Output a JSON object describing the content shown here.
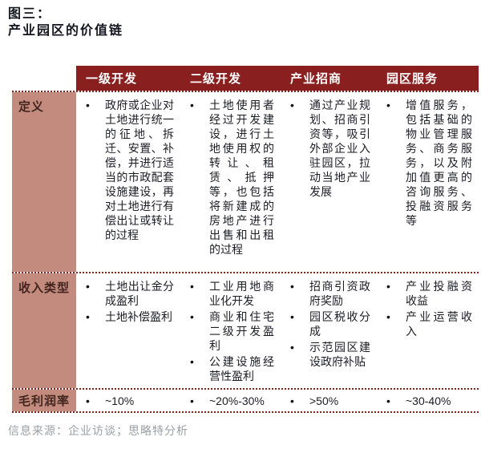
{
  "figure": {
    "label": "图三：",
    "title": "产业园区的价值链"
  },
  "colors": {
    "header_bg": "#8a1f1f",
    "label_bg": "#c38b7d",
    "divider": "#8a1f1f",
    "body_text": "#1c1c26",
    "source_text": "#9aa0a6"
  },
  "table": {
    "column_headers": [
      "一级开发",
      "二级开发",
      "产业招商",
      "园区服务"
    ],
    "rows": [
      {
        "label": "定义",
        "cells": [
          [
            "政府或企业对土地进行统一的征地、拆迁、安置、补偿，并进行适当的市政配套设施建设，再对土地进行有偿出让或转让的过程"
          ],
          [
            "土地使用者经过开发建设，进行土地使用权的转让、租赁、抵押等，也包括将新建成的房地产进行出售和出租的过程"
          ],
          [
            "通过产业规划、招商引资等，吸引外部企业入驻园区，拉动当地产业发展"
          ],
          [
            "增值服务，包括基础的物业管理服务、商务服务，以及附加值更高的咨询服务、投融资服务等"
          ]
        ]
      },
      {
        "label": "收入类型",
        "cells": [
          [
            "土地出让金分成盈利",
            "土地补偿盈利"
          ],
          [
            "工业用地商业化开发",
            "商业和住宅二级开发盈利",
            "公建设施经营性盈利"
          ],
          [
            "招商引资政府奖励",
            "园区税收分成",
            "示范园区建设政府补贴"
          ],
          [
            "产业投融资收益",
            "产业运营收入"
          ]
        ]
      },
      {
        "label": "毛利润率",
        "cells": [
          [
            "~10%"
          ],
          [
            "~20%-30%"
          ],
          [
            ">50%"
          ],
          [
            "~30-40%"
          ]
        ]
      }
    ]
  },
  "source_note": "信息来源：企业访谈；思略特分析"
}
